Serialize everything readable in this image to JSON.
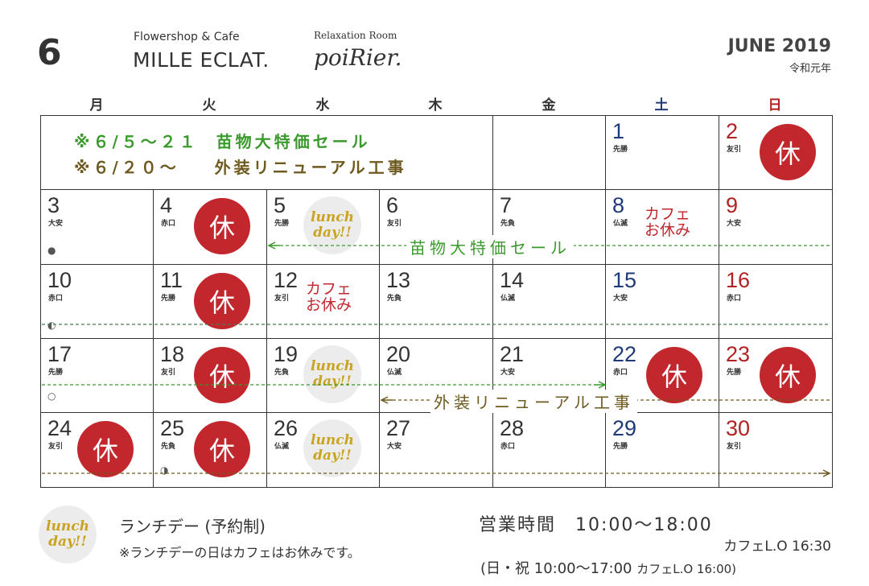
{
  "header": {
    "month": "6",
    "shop_sub": "Flowershop & Cafe",
    "shop_name": "MILLE ECLAT.",
    "relax_sub": "Relaxation Room",
    "relax_name": "poiRier.",
    "year_title": "JUNE 2019",
    "era": "令和元年"
  },
  "weekdays": [
    "月",
    "火",
    "水",
    "木",
    "金",
    "土",
    "日"
  ],
  "colors": {
    "weekday": "#333333",
    "saturday": "#1f3a78",
    "sunday": "#b22222",
    "closed": "#c1272d",
    "sale": "#3a9a2c",
    "renewal": "#6e5a1e",
    "lunch": "#c9a422"
  },
  "banner": {
    "line1_date": "※６/５～２１",
    "line1_text": "苗物大特価セール",
    "line2_date": "※６/２０～",
    "line2_text": "外装リニューアル工事"
  },
  "badges": {
    "closed": "休",
    "lunch_line1": "lunch",
    "lunch_line2": "day!!",
    "cafe_line1": "カフェ",
    "cafe_line2": "お休み"
  },
  "days": [
    {
      "day": "1",
      "roku": "先勝",
      "type": "saturday"
    },
    {
      "day": "2",
      "roku": "友引",
      "type": "sunday",
      "badge": "closed"
    },
    {
      "day": "3",
      "roku": "大安",
      "type": "weekday",
      "moon": "●"
    },
    {
      "day": "4",
      "roku": "赤口",
      "type": "weekday",
      "badge": "closed"
    },
    {
      "day": "5",
      "roku": "先勝",
      "type": "weekday",
      "badge": "lunch"
    },
    {
      "day": "6",
      "roku": "友引",
      "type": "weekday"
    },
    {
      "day": "7",
      "roku": "先負",
      "type": "weekday"
    },
    {
      "day": "8",
      "roku": "仏滅",
      "type": "saturday",
      "badge": "cafe"
    },
    {
      "day": "9",
      "roku": "大安",
      "type": "sunday"
    },
    {
      "day": "10",
      "roku": "赤口",
      "type": "weekday",
      "moon": "◐"
    },
    {
      "day": "11",
      "roku": "先勝",
      "type": "weekday",
      "badge": "closed"
    },
    {
      "day": "12",
      "roku": "友引",
      "type": "weekday",
      "badge": "cafe"
    },
    {
      "day": "13",
      "roku": "先負",
      "type": "weekday"
    },
    {
      "day": "14",
      "roku": "仏滅",
      "type": "weekday"
    },
    {
      "day": "15",
      "roku": "大安",
      "type": "saturday"
    },
    {
      "day": "16",
      "roku": "赤口",
      "type": "sunday"
    },
    {
      "day": "17",
      "roku": "先勝",
      "type": "weekday",
      "moon": "○"
    },
    {
      "day": "18",
      "roku": "友引",
      "type": "weekday",
      "badge": "closed"
    },
    {
      "day": "19",
      "roku": "先負",
      "type": "weekday",
      "badge": "lunch"
    },
    {
      "day": "20",
      "roku": "仏滅",
      "type": "weekday"
    },
    {
      "day": "21",
      "roku": "大安",
      "type": "weekday"
    },
    {
      "day": "22",
      "roku": "赤口",
      "type": "saturday",
      "badge": "closed"
    },
    {
      "day": "23",
      "roku": "先勝",
      "type": "sunday",
      "badge": "closed"
    },
    {
      "day": "24",
      "roku": "友引",
      "type": "weekday",
      "badge": "closed"
    },
    {
      "day": "25",
      "roku": "先負",
      "type": "weekday",
      "badge": "closed",
      "moon": "◑"
    },
    {
      "day": "26",
      "roku": "仏滅",
      "type": "weekday",
      "badge": "lunch"
    },
    {
      "day": "27",
      "roku": "大安",
      "type": "weekday"
    },
    {
      "day": "28",
      "roku": "赤口",
      "type": "weekday"
    },
    {
      "day": "29",
      "roku": "先勝",
      "type": "saturday"
    },
    {
      "day": "30",
      "roku": "友引",
      "type": "sunday"
    }
  ],
  "period_labels": {
    "sale": "苗物大特価セール",
    "renewal": "外装リニューアル工事"
  },
  "footer": {
    "lunch_title": "ランチデー (予約制)",
    "lunch_note": "※ランチデーの日はカフェはお休みです。",
    "hours": "営業時間　10:00～18:00",
    "cafe_lo": "カフェL.O 16:30",
    "holiday_hours": "(日・祝 10:00～17:00",
    "holiday_cafe_lo": "カフェL.O 16:00)"
  }
}
